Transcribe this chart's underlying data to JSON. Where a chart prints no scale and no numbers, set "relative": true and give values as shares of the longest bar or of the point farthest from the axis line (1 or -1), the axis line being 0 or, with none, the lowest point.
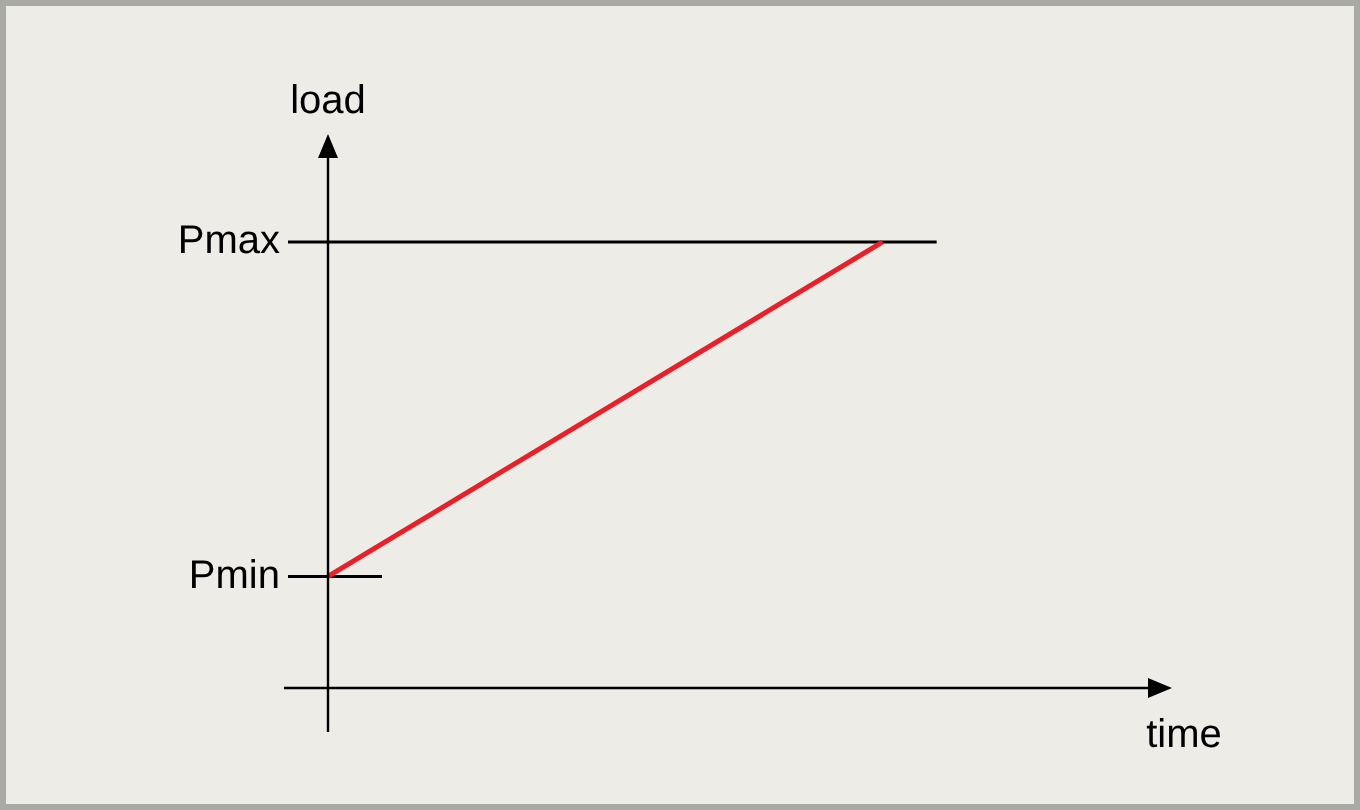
{
  "chart_data": {
    "type": "line",
    "relative": true,
    "xlabel": "time",
    "ylabel": "load",
    "categories": [
      null,
      null,
      null,
      null
    ],
    "values": [
      0.25,
      0.625,
      1,
      null
    ],
    "color": "#e8202a",
    "ref_lines": [
      {
        "axis": "y",
        "value": 1,
        "label": "Pmax",
        "color": "#000000"
      },
      {
        "axis": "y",
        "value": 0.25,
        "label": "Pmin",
        "color": "#000000"
      }
    ]
  }
}
